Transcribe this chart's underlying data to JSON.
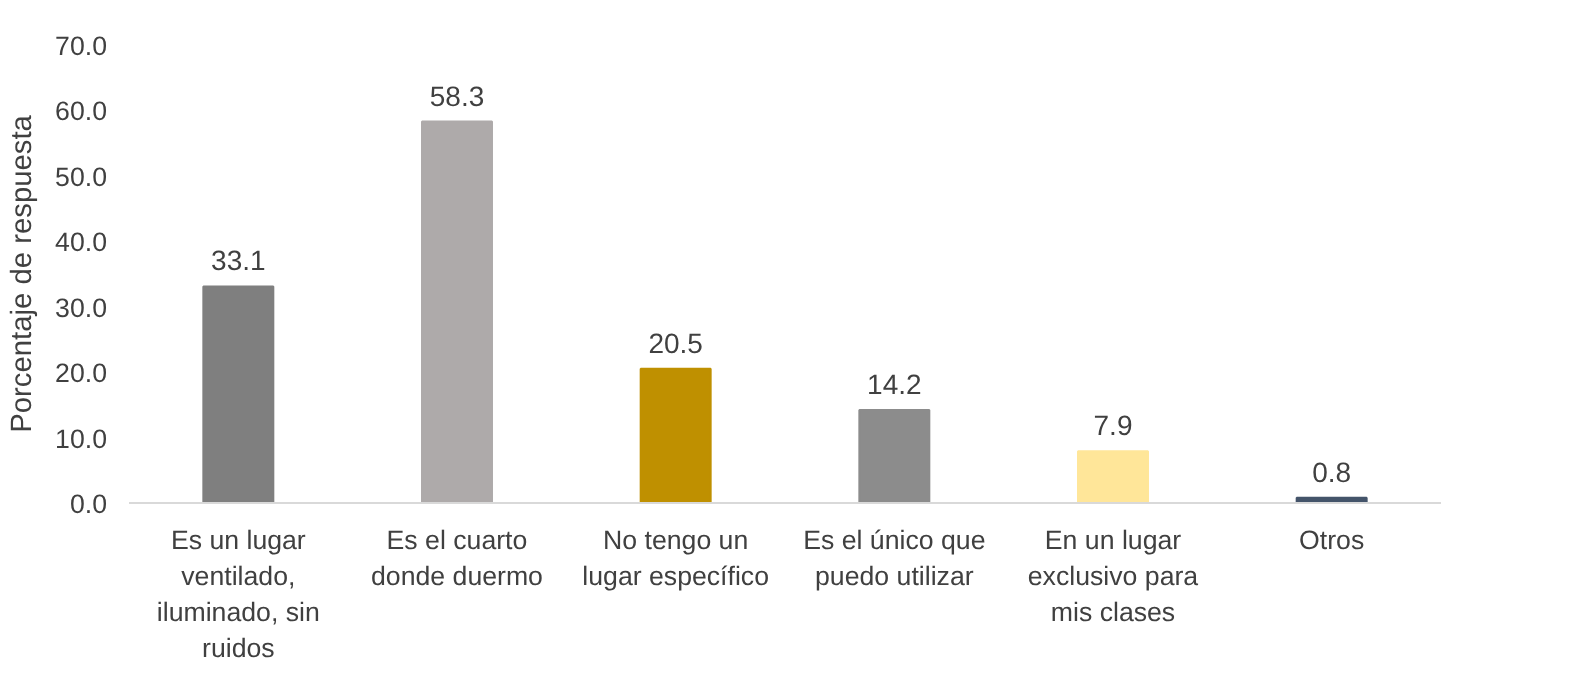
{
  "chart_data": {
    "type": "bar",
    "ylabel": "Porcentaje de respuesta",
    "categories": [
      "Es un lugar ventilado, iluminado, sin ruidos",
      "Es el cuarto donde duermo",
      "No tengo un lugar específico",
      "Es el único que puedo utilizar",
      "En un lugar exclusivo para mis clases",
      "Otros"
    ],
    "values": [
      33.1,
      58.3,
      20.5,
      14.2,
      7.9,
      0.8
    ],
    "colors": [
      "#7f7f7f",
      "#aeaaaa",
      "#bf9000",
      "#8c8c8c",
      "#ffe699",
      "#44546a"
    ],
    "ylim": [
      0,
      70
    ],
    "yticks": [
      {
        "value": 0,
        "label": "0.0"
      },
      {
        "value": 10,
        "label": "10.0"
      },
      {
        "value": 20,
        "label": "20.0"
      },
      {
        "value": 30,
        "label": "30.0"
      },
      {
        "value": 40,
        "label": "40.0"
      },
      {
        "value": 50,
        "label": "50.0"
      },
      {
        "value": 60,
        "label": "60.0"
      },
      {
        "value": 70,
        "label": "70.0"
      }
    ],
    "data_labels": true,
    "grid": false
  }
}
